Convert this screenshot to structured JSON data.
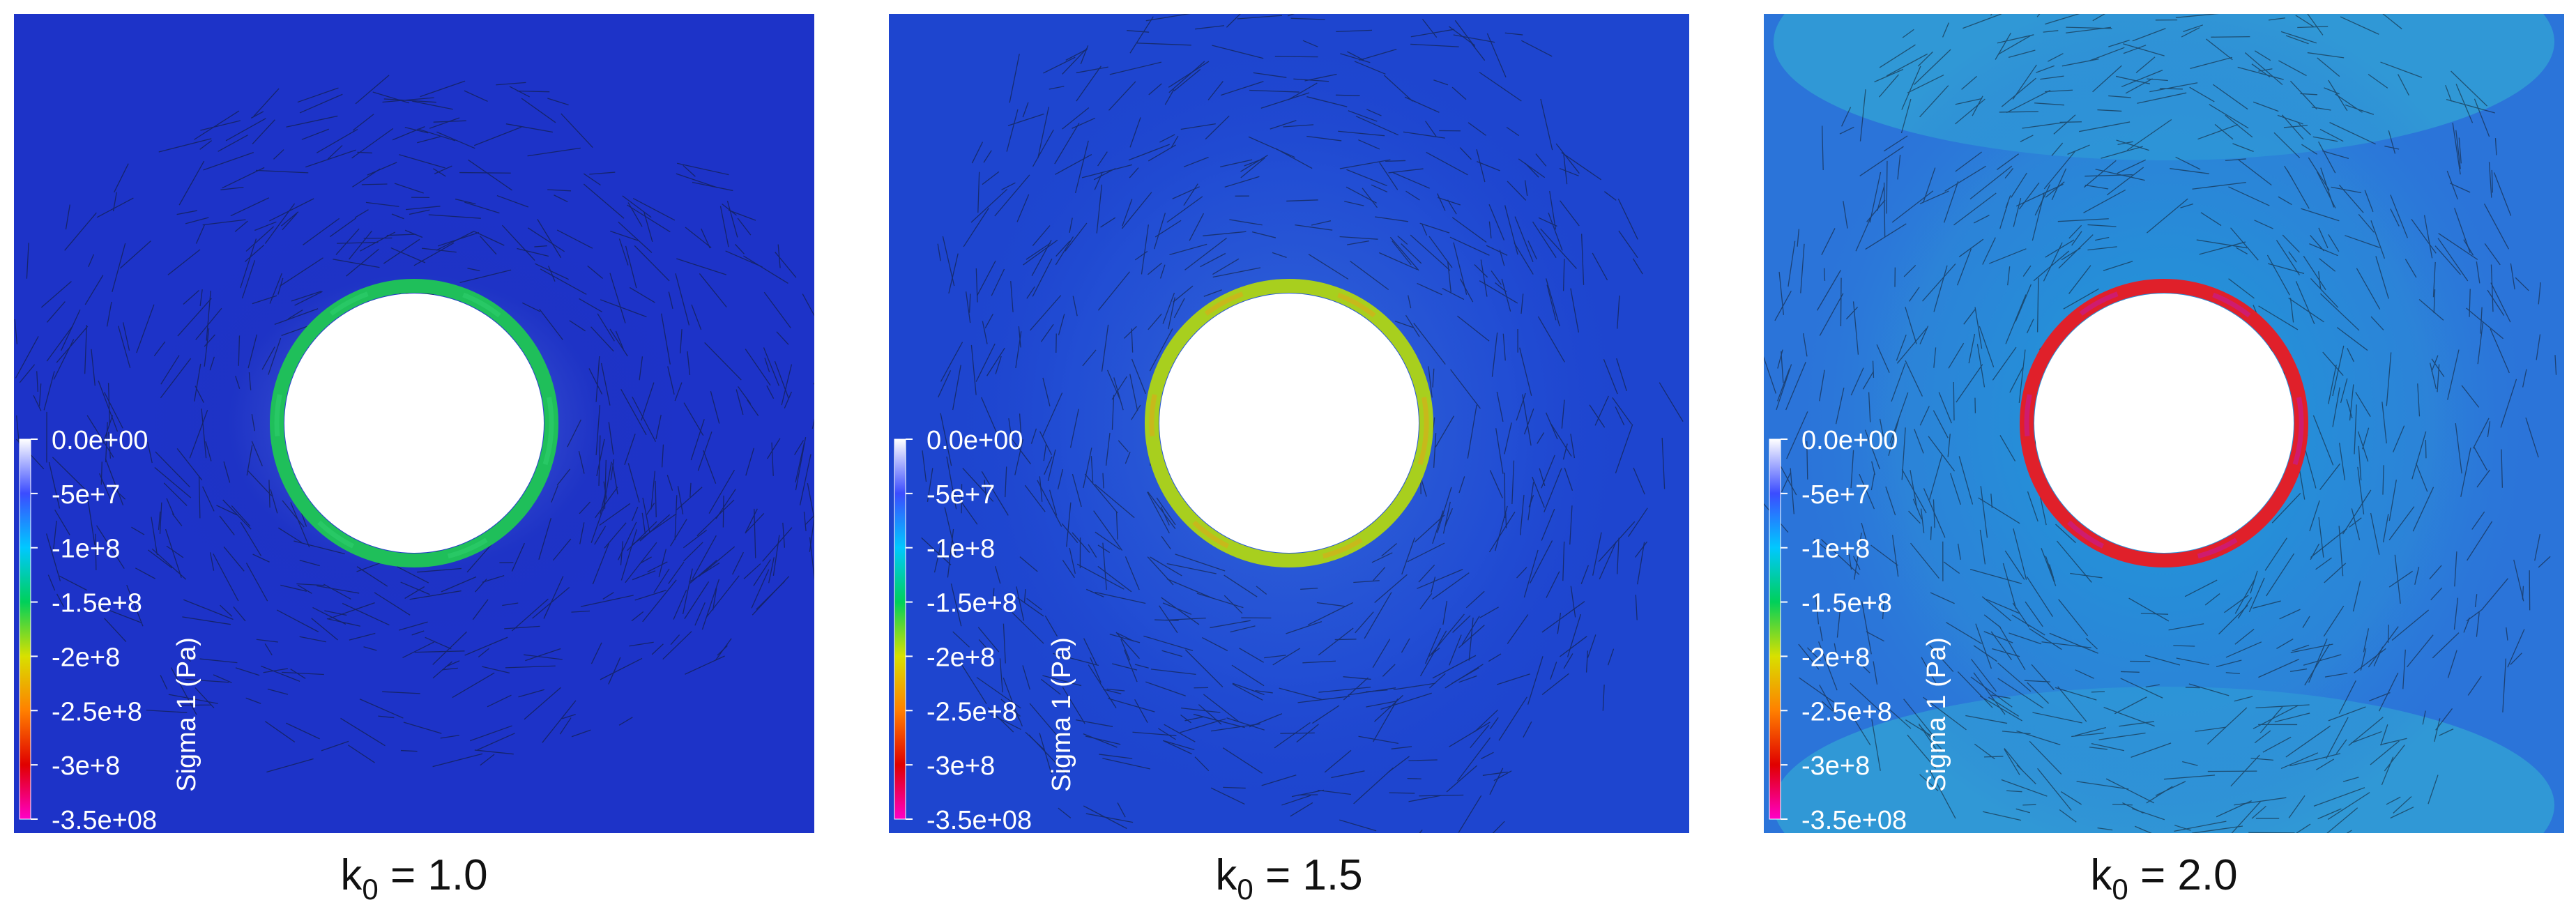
{
  "panels": [
    {
      "id": "k1",
      "k_symbol": "k",
      "k_subscript": "0",
      "k_value": "= 1.0",
      "ring_color": "#1fbf5a",
      "ring_accent": "#2fd070",
      "background": "#1d33c8",
      "halo": "#6f86e6",
      "fracture_extent": 0.55,
      "field_tint": "#1e33c4"
    },
    {
      "id": "k15",
      "k_symbol": "k",
      "k_subscript": "0",
      "k_value": "= 1.5",
      "ring_color": "#a8cf1e",
      "ring_accent": "#e0a71a",
      "background": "#1e45cf",
      "halo": "#3a72da",
      "fracture_extent": 0.8,
      "field_tint": "#2555d8"
    },
    {
      "id": "k2",
      "k_symbol": "k",
      "k_subscript": "0",
      "k_value": "= 2.0",
      "ring_color": "#e0202a",
      "ring_accent": "#c11aa6",
      "background": "#2b74d9",
      "halo": "#1aa5d8",
      "fracture_extent": 1.0,
      "field_tint": "#2c8fd8"
    }
  ],
  "colorbar": {
    "title": "Sigma 1 (Pa)",
    "ticks": [
      "0.0e+00",
      "-5e+7",
      "-1e+8",
      "-1.5e+8",
      "-2e+8",
      "-2.5e+8",
      "-3e+8",
      "-3.5e+08"
    ],
    "range": [
      -350000000.0,
      0
    ],
    "colors": [
      "#ffffff",
      "#3b4cff",
      "#00c8ff",
      "#00d05a",
      "#d8e000",
      "#ff8000",
      "#e00000",
      "#ff00c8"
    ]
  }
}
